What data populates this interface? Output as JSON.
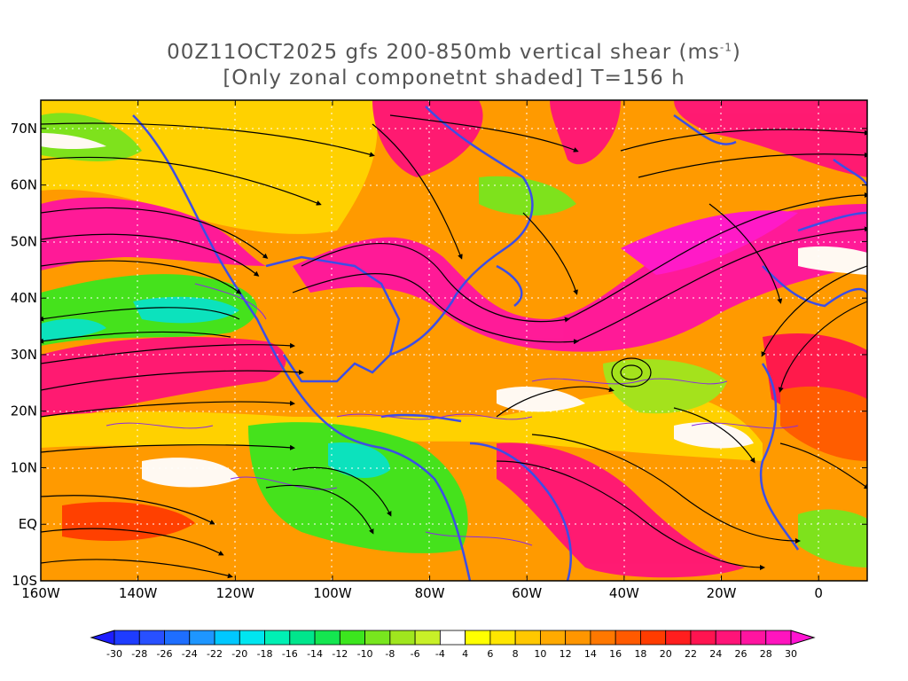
{
  "title": {
    "line1_prefix": "00Z11OCT2025 gfs 200-850mb vertical shear (ms",
    "line1_sup": "-1",
    "line1_suffix": ")",
    "line2": "[Only zonal componetnt shaded] T=156 h"
  },
  "map": {
    "lon_range": [
      -160,
      10
    ],
    "lat_range": [
      -10,
      75
    ],
    "lat_labels": [
      {
        "lat": 70,
        "text": "70N"
      },
      {
        "lat": 60,
        "text": "60N"
      },
      {
        "lat": 50,
        "text": "50N"
      },
      {
        "lat": 40,
        "text": "40N"
      },
      {
        "lat": 30,
        "text": "30N"
      },
      {
        "lat": 20,
        "text": "20N"
      },
      {
        "lat": 10,
        "text": "10N"
      },
      {
        "lat": 0,
        "text": "EQ"
      },
      {
        "lat": -10,
        "text": "10S"
      }
    ],
    "lon_labels": [
      {
        "lon": -160,
        "text": "160W"
      },
      {
        "lon": -140,
        "text": "140W"
      },
      {
        "lon": -120,
        "text": "120W"
      },
      {
        "lon": -100,
        "text": "100W"
      },
      {
        "lon": -80,
        "text": "80W"
      },
      {
        "lon": -60,
        "text": "60W"
      },
      {
        "lon": -40,
        "text": "40W"
      },
      {
        "lon": -20,
        "text": "20W"
      },
      {
        "lon": 0,
        "text": "0"
      }
    ],
    "colors": {
      "coastline": "#3c4ee6",
      "contour": "#8a2be2",
      "streamline": "#000000",
      "gridline": "#ffffff"
    }
  },
  "colorbar": {
    "levels": [
      "-30",
      "-28",
      "-26",
      "-24",
      "-22",
      "-20",
      "-18",
      "-16",
      "-14",
      "-12",
      "-10",
      "-8",
      "-6",
      "-4",
      "4",
      "6",
      "8",
      "10",
      "12",
      "14",
      "16",
      "18",
      "20",
      "22",
      "24",
      "26",
      "28",
      "30"
    ],
    "colors": [
      "#1e1eff",
      "#1e3cff",
      "#2850ff",
      "#1e6eff",
      "#1e96ff",
      "#00c8ff",
      "#00e6f0",
      "#00f0b4",
      "#00e68c",
      "#14e650",
      "#3ce61e",
      "#78e61e",
      "#a0e61e",
      "#c8f028",
      "#ffffff",
      "#ffff00",
      "#ffe600",
      "#ffc800",
      "#ffaa00",
      "#ff9600",
      "#ff7800",
      "#ff5a00",
      "#ff3c00",
      "#ff1e1e",
      "#ff1450",
      "#ff1478",
      "#ff14a0",
      "#ff14be",
      "#ff14d2"
    ]
  }
}
